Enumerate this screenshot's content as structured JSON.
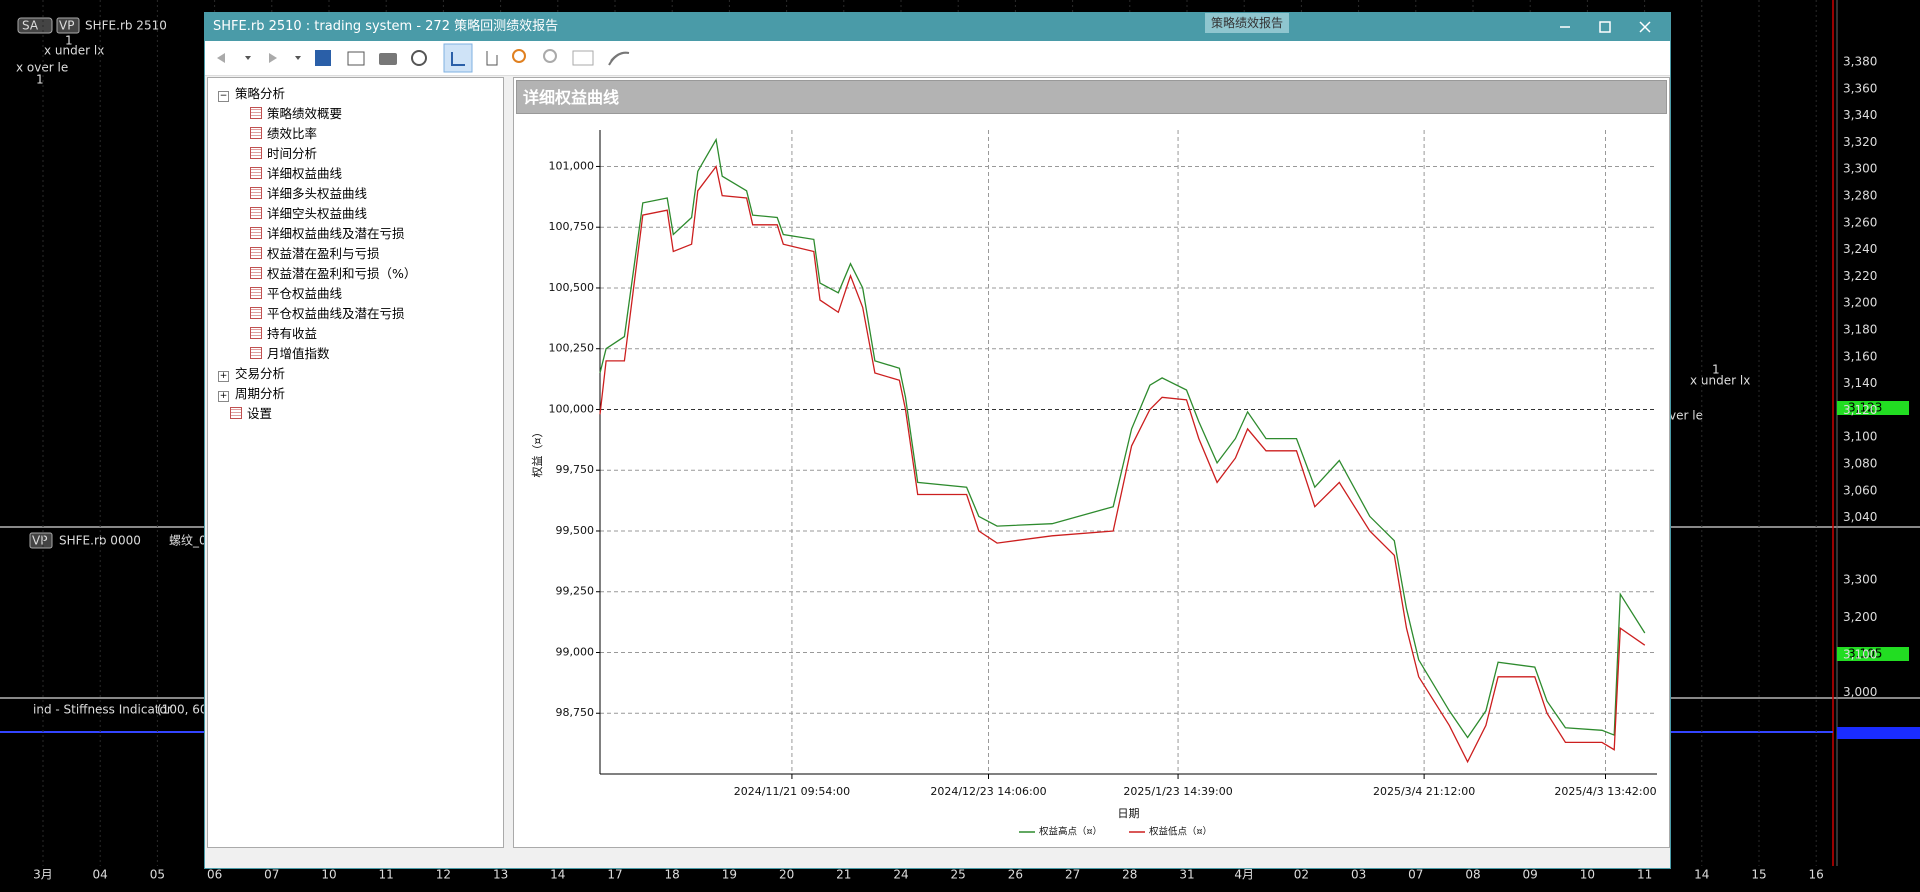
{
  "window": {
    "title": "SHFE.rb 2510 : trading system - 272 策略回测绩效报告",
    "tooltip": "策略绩效报告"
  },
  "nav": {
    "groups": [
      {
        "label": "策略分析",
        "items": [
          "策略绩效概要",
          "绩效比率",
          "时间分析",
          "详细权益曲线",
          "详细多头权益曲线",
          "详细空头权益曲线",
          "详细权益曲线及潜在亏损",
          "权益潜在盈利与亏损",
          "权益潜在盈利和亏损（%）",
          "平仓权益曲线",
          "平仓权益曲线及潜在亏损",
          "持有收益",
          "月增值指数"
        ]
      },
      {
        "label": "交易分析"
      },
      {
        "label": "周期分析"
      },
      {
        "label": "设置"
      }
    ]
  },
  "background": {
    "panel1": {
      "badges": [
        "SA",
        "VP"
      ],
      "symbol": "SHFE.rb 2510",
      "annotations": [
        "1",
        "x under lx",
        "x over le",
        "1"
      ],
      "right_annotations": [
        "1",
        "x under lx",
        "ver le"
      ],
      "price_tag": "3,123"
    },
    "panel2": {
      "badge": "VP",
      "symbol": "SHFE.rb 0000",
      "name": "螺纹_0",
      "price_tag": "3,105"
    },
    "panel3": {
      "name": "ind - Stiffness Indicator",
      "params": "(100, 60,"
    },
    "price_axis": [
      "3,380",
      "3,360",
      "3,340",
      "3,320",
      "3,300",
      "3,280",
      "3,260",
      "3,240",
      "3,220",
      "3,200",
      "3,180",
      "3,160",
      "3,140",
      "3,120",
      "3,100",
      "3,080",
      "3,060",
      "3,040"
    ],
    "price_axis2": [
      "3,300",
      "3,200",
      "3,100",
      "3,000"
    ],
    "date_labels": [
      "3月",
      "04",
      "05",
      "06",
      "07",
      "10",
      "11",
      "12",
      "13",
      "14",
      "17",
      "18",
      "19",
      "20",
      "21",
      "24",
      "25",
      "26",
      "27",
      "28",
      "31",
      "4月",
      "02",
      "03",
      "07",
      "08",
      "09",
      "10",
      "11",
      "14",
      "15",
      "16"
    ]
  },
  "chart_data": {
    "type": "line",
    "title": "详细权益曲线",
    "x_label": "日期",
    "y_label": "权益（¤）",
    "x": [
      "2024/10/21",
      "2024/10/22",
      "2024/10/25",
      "2024/10/28",
      "2024/11/01",
      "2024/11/02",
      "2024/11/05",
      "2024/11/06",
      "2024/11/09",
      "2024/11/10",
      "2024/11/14",
      "2024/11/15",
      "2024/11/19",
      "2024/11/20",
      "2024/11/25",
      "2024/11/26",
      "2024/11/29",
      "2024/12/01",
      "2024/12/03",
      "2024/12/05",
      "2024/12/09",
      "2024/12/10",
      "2024/12/12",
      "2024/12/20",
      "2024/12/22",
      "2024/12/25",
      "2025/01/03",
      "2025/01/13",
      "2025/01/16",
      "2025/01/19",
      "2025/01/21",
      "2025/01/25",
      "2025/01/27",
      "2025/01/30",
      "2025/02/02",
      "2025/02/04",
      "2025/02/07",
      "2025/02/12",
      "2025/02/15",
      "2025/02/19",
      "2025/02/24",
      "2025/02/28",
      "2025/03/02",
      "2025/03/04",
      "2025/03/09",
      "2025/03/12",
      "2025/03/15",
      "2025/03/17",
      "2025/03/23",
      "2025/03/25",
      "2025/03/28",
      "2025/04/03",
      "2025/04/05",
      "2025/04/06",
      "2025/04/10"
    ],
    "series": [
      {
        "name": "权益高点（¤）",
        "color": "#2e8b2e",
        "values": [
          100150,
          100250,
          100300,
          100850,
          100870,
          100720,
          100790,
          100980,
          101110,
          100960,
          100900,
          100800,
          100790,
          100720,
          100700,
          100520,
          100480,
          100600,
          100500,
          100200,
          100170,
          100050,
          99700,
          99680,
          99560,
          99520,
          99530,
          99600,
          99920,
          100100,
          100130,
          100080,
          99950,
          99780,
          99880,
          99990,
          99880,
          99880,
          99680,
          99790,
          99560,
          99460,
          99180,
          98970,
          98760,
          98650,
          98760,
          98960,
          98940,
          98800,
          98690,
          98680,
          98660,
          99240,
          99080
        ]
      },
      {
        "name": "权益低点（¤）",
        "color": "#cc1f1f",
        "values": [
          99980,
          100200,
          100200,
          100800,
          100820,
          100650,
          100680,
          100900,
          101000,
          100880,
          100870,
          100760,
          100760,
          100680,
          100650,
          100450,
          100400,
          100550,
          100420,
          100150,
          100120,
          100000,
          99650,
          99650,
          99500,
          99450,
          99480,
          99500,
          99850,
          100000,
          100050,
          100040,
          99880,
          99700,
          99800,
          99920,
          99830,
          99830,
          99600,
          99700,
          99500,
          99400,
          99100,
          98900,
          98700,
          98550,
          98700,
          98900,
          98900,
          98750,
          98630,
          98630,
          98600,
          99100,
          99030
        ]
      }
    ],
    "xlim": [
      "2024/10/21",
      "2025/04/12"
    ],
    "xticks": [
      "2024/11/21 09:54:00",
      "2024/12/23 14:06:00",
      "2025/1/23 14:39:00",
      "2025/3/4 21:12:00",
      "2025/4/3 13:42:00"
    ],
    "ylim": [
      98500,
      101150
    ],
    "yticks": [
      {
        "value": 98750,
        "label": "98,750"
      },
      {
        "value": 99000,
        "label": "99,000"
      },
      {
        "value": 99250,
        "label": "99,250"
      },
      {
        "value": 99500,
        "label": "99,500"
      },
      {
        "value": 99750,
        "label": "99,750"
      },
      {
        "value": 100000,
        "label": "100,000"
      },
      {
        "value": 100250,
        "label": "100,250"
      },
      {
        "value": 100500,
        "label": "100,500"
      },
      {
        "value": 100750,
        "label": "100,750"
      },
      {
        "value": 101000,
        "label": "101,000"
      }
    ],
    "grid": true,
    "legend": "bottom"
  }
}
